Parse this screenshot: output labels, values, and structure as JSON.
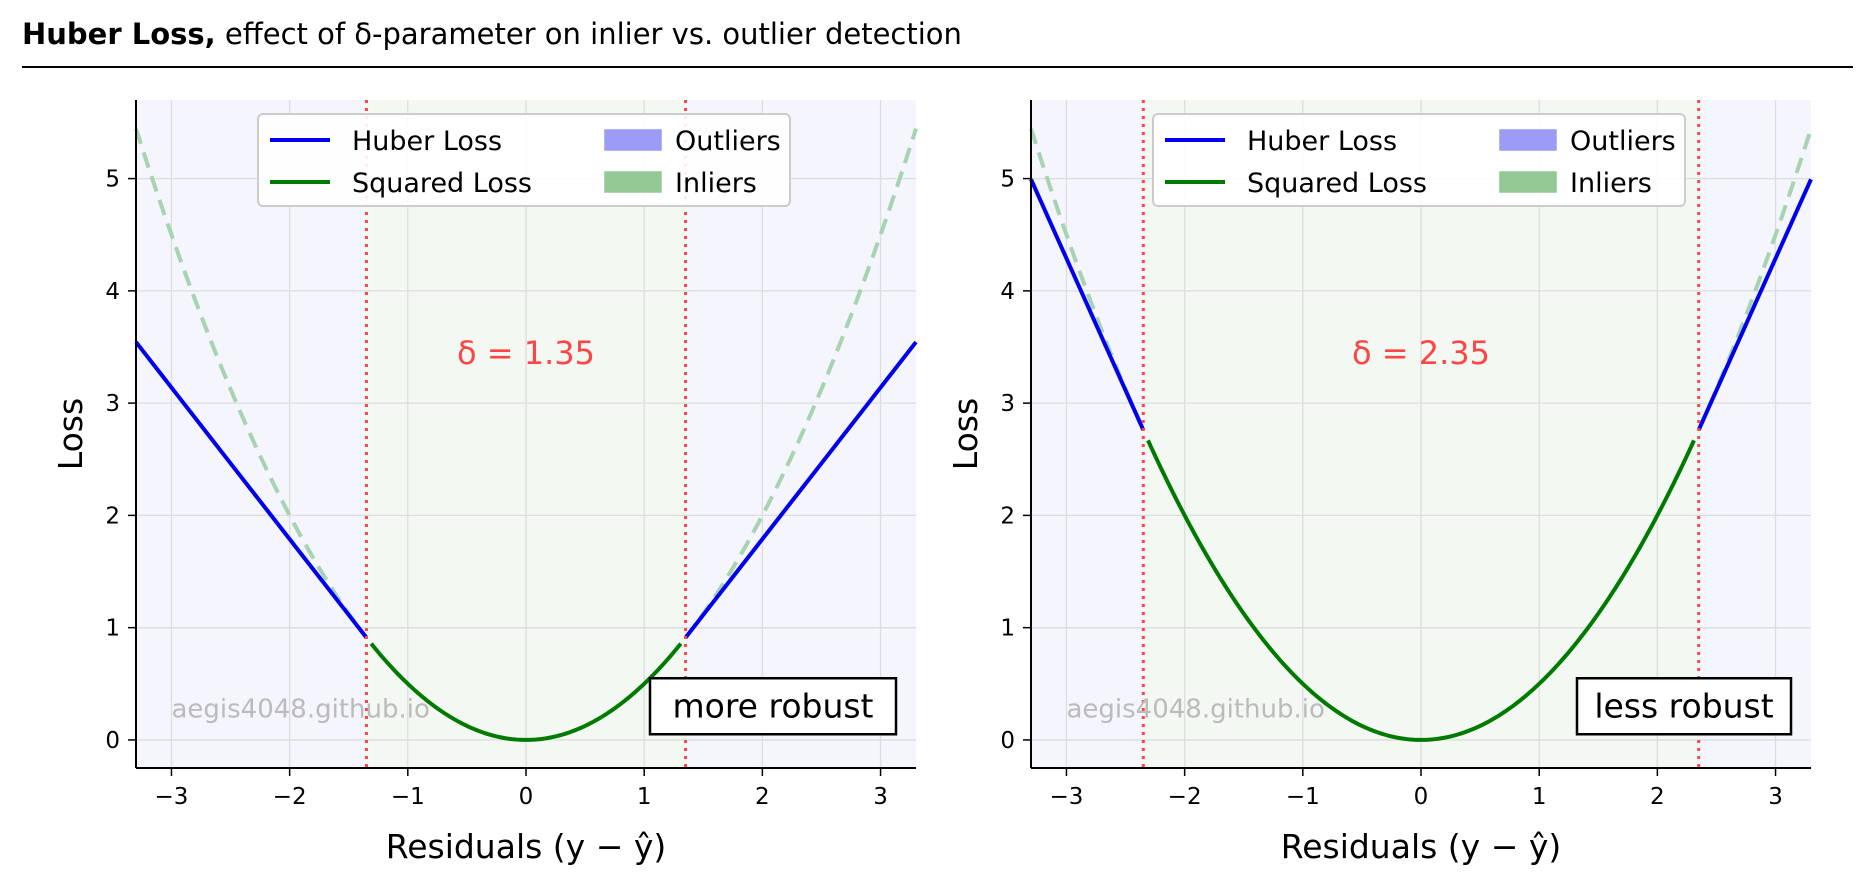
{
  "header": {
    "title_bold": "Huber Loss,",
    "title_rest": " effect of δ-parameter on inlier vs. outlier detection"
  },
  "colors": {
    "huber": "#0000ee",
    "squared": "#007a00",
    "squared_dashed": "#a8d3b0",
    "delta_line": "#ff4444",
    "outlier_band": "#f4f5fd",
    "inlier_band": "#f3f8f2",
    "grid": "#dddddd",
    "legend_outlier_patch": "#9a9cf6",
    "legend_inlier_patch": "#94c894",
    "watermark": "#bbbbbb"
  },
  "chart_data": [
    {
      "type": "line",
      "delta": 1.35,
      "annotation": "δ = 1.35",
      "robustness_label": "more robust",
      "watermark": "aegis4048.github.io",
      "xlabel": "Residuals (y − ŷ)",
      "ylabel": "Loss",
      "xlim": [
        -3.3,
        3.3
      ],
      "ylim": [
        -0.25,
        5.7
      ],
      "xticks": [
        -3,
        -2,
        -1,
        0,
        1,
        2,
        3
      ],
      "xtick_labels": [
        "−3",
        "−2",
        "−1",
        "0",
        "1",
        "2",
        "3"
      ],
      "yticks": [
        0,
        1,
        2,
        3,
        4,
        5
      ],
      "ytick_labels": [
        "0",
        "1",
        "2",
        "3",
        "4",
        "5"
      ],
      "grid": true,
      "legend_position": "top-center",
      "legend": [
        {
          "label": "Huber Loss",
          "kind": "line",
          "color": "#0000ee"
        },
        {
          "label": "Squared Loss",
          "kind": "line",
          "color": "#007a00"
        },
        {
          "label": "Outliers",
          "kind": "patch",
          "color": "#9a9cf6"
        },
        {
          "label": "Inliers",
          "kind": "patch",
          "color": "#94c894"
        }
      ],
      "series": [
        {
          "name": "Huber Loss",
          "function": "delta*(|x| - delta/2) for |x| > delta",
          "x_ranges": [
            [
              -3.3,
              -1.35
            ],
            [
              1.35,
              3.3
            ]
          ]
        },
        {
          "name": "Squared Loss",
          "function": "x^2/2 for |x| <= delta",
          "x_ranges": [
            [
              -1.35,
              1.35
            ]
          ]
        },
        {
          "function": "x^2/2 (dashed) for |x| > delta",
          "x_ranges": [
            [
              -3.3,
              -1.35
            ],
            [
              1.35,
              3.3
            ]
          ]
        }
      ]
    },
    {
      "type": "line",
      "delta": 2.35,
      "annotation": "δ = 2.35",
      "robustness_label": "less robust",
      "watermark": "aegis4048.github.io",
      "xlabel": "Residuals (y − ŷ)",
      "ylabel": "Loss",
      "xlim": [
        -3.3,
        3.3
      ],
      "ylim": [
        -0.25,
        5.7
      ],
      "xticks": [
        -3,
        -2,
        -1,
        0,
        1,
        2,
        3
      ],
      "xtick_labels": [
        "−3",
        "−2",
        "−1",
        "0",
        "1",
        "2",
        "3"
      ],
      "yticks": [
        0,
        1,
        2,
        3,
        4,
        5
      ],
      "ytick_labels": [
        "0",
        "1",
        "2",
        "3",
        "4",
        "5"
      ],
      "grid": true,
      "legend_position": "top-center",
      "legend": [
        {
          "label": "Huber Loss",
          "kind": "line",
          "color": "#0000ee"
        },
        {
          "label": "Squared Loss",
          "kind": "line",
          "color": "#007a00"
        },
        {
          "label": "Outliers",
          "kind": "patch",
          "color": "#9a9cf6"
        },
        {
          "label": "Inliers",
          "kind": "patch",
          "color": "#94c894"
        }
      ],
      "series": [
        {
          "name": "Huber Loss",
          "function": "delta*(|x| - delta/2) for |x| > delta",
          "x_ranges": [
            [
              -3.3,
              -2.35
            ],
            [
              2.35,
              3.3
            ]
          ]
        },
        {
          "name": "Squared Loss",
          "function": "x^2/2 for |x| <= delta",
          "x_ranges": [
            [
              -2.35,
              2.35
            ]
          ]
        },
        {
          "function": "x^2/2 (dashed) for |x| > delta",
          "x_ranges": [
            [
              -3.3,
              -2.35
            ],
            [
              2.35,
              3.3
            ]
          ]
        }
      ]
    }
  ]
}
